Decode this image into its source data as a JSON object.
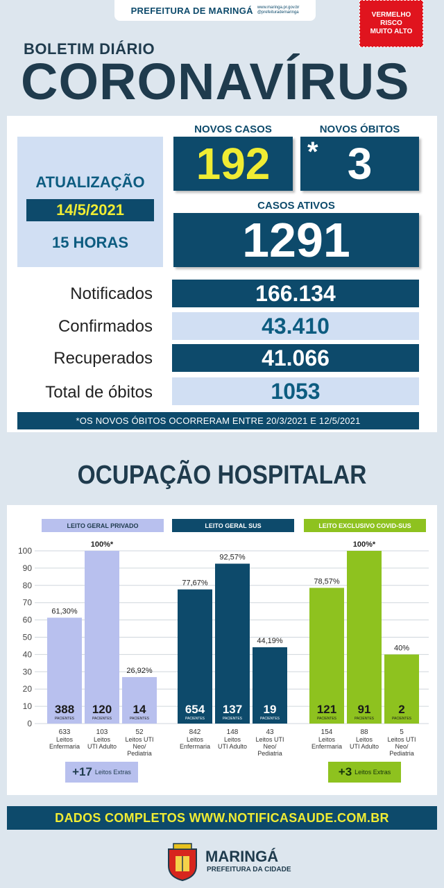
{
  "header": {
    "org": "PREFEITURA DE MARINGÁ",
    "site": "www.maringa.pr.gov.br",
    "handle": "@prefeiturademaringa",
    "risk_lines": [
      "VERMELHO",
      "RISCO",
      "MUITO ALTO"
    ]
  },
  "title": {
    "kicker": "BOLETIM DIÁRIO",
    "main": "CORONAVÍRUS"
  },
  "update": {
    "label": "ATUALIZAÇÃO",
    "date": "14/5/2021",
    "time": "15 HORAS"
  },
  "new_cases": {
    "label": "NOVOS CASOS",
    "value": "192"
  },
  "new_deaths": {
    "label": "NOVOS ÓBITOS",
    "marker": "*",
    "value": "3"
  },
  "active_cases": {
    "label": "CASOS ATIVOS",
    "value": "1291"
  },
  "stats": [
    {
      "label": "Notificados",
      "value": "166.134"
    },
    {
      "label": "Confirmados",
      "value": "43.410"
    },
    {
      "label": "Recuperados",
      "value": "41.066"
    },
    {
      "label": "Total de óbitos",
      "value": "1053"
    }
  ],
  "note": "*OS NOVOS ÓBITOS OCORRERAM ENTRE 20/3/2021 E 12/5/2021",
  "hospital_title": "OCUPAÇÃO HOSPITALAR",
  "chart_data": {
    "type": "bar",
    "ylim": [
      0,
      100
    ],
    "yticks": [
      0,
      10,
      20,
      30,
      40,
      50,
      60,
      70,
      80,
      90,
      100
    ],
    "grid": true,
    "patients_unit": "PACIENTES",
    "groups": [
      {
        "name": "LEITO GERAL PRIVADO",
        "color": "#b8c0ee",
        "header_color": "#b8c0ee",
        "header_text_color": "#1f3b4d",
        "bars": [
          {
            "pct": 61.3,
            "pct_label": "61,30%",
            "patients": "388",
            "beds": "633",
            "beds_label": [
              "Leitos",
              "Enfermaria"
            ]
          },
          {
            "pct": 100,
            "pct_label": "100%*",
            "patients": "120",
            "beds": "103",
            "beds_label": [
              "Leitos",
              "UTI Adulto"
            ]
          },
          {
            "pct": 26.92,
            "pct_label": "26,92%",
            "patients": "14",
            "beds": "52",
            "beds_label": [
              "Leitos UTI",
              "Neo/",
              "Pediatria"
            ]
          }
        ],
        "extra": {
          "num": "+17",
          "text": "Leitos Extras"
        }
      },
      {
        "name": "LEITO GERAL SUS",
        "color": "#0d4a6b",
        "header_color": "#0d4a6b",
        "header_text_color": "#ffffff",
        "bars": [
          {
            "pct": 77.67,
            "pct_label": "77,67%",
            "patients": "654",
            "beds": "842",
            "beds_label": [
              "Leitos",
              "Enfermaria"
            ]
          },
          {
            "pct": 92.57,
            "pct_label": "92,57%",
            "patients": "137",
            "beds": "148",
            "beds_label": [
              "Leitos",
              "UTI Adulto"
            ]
          },
          {
            "pct": 44.19,
            "pct_label": "44,19%",
            "patients": "19",
            "beds": "43",
            "beds_label": [
              "Leitos UTI",
              "Neo/",
              "Pediatria"
            ]
          }
        ]
      },
      {
        "name": "LEITO EXCLUSIVO COVID-SUS",
        "color": "#8ec21f",
        "header_color": "#8ec21f",
        "header_text_color": "#ffffff",
        "bars": [
          {
            "pct": 78.57,
            "pct_label": "78,57%",
            "patients": "121",
            "beds": "154",
            "beds_label": [
              "Leitos",
              "Enfermaria"
            ]
          },
          {
            "pct": 100,
            "pct_label": "100%*",
            "patients": "91",
            "beds": "88",
            "beds_label": [
              "Leitos",
              "UTI Adulto"
            ]
          },
          {
            "pct": 40,
            "pct_label": "40%",
            "patients": "2",
            "beds": "5",
            "beds_label": [
              "Leitos UTI",
              "Neo/",
              "Pediatria"
            ]
          }
        ],
        "extra": {
          "num": "+3",
          "text": "Leitos Extras"
        }
      }
    ]
  },
  "footer": {
    "text": "DADOS COMPLETOS  WWW.NOTIFICASAUDE.COM.BR",
    "logo_name": "MARINGÁ",
    "logo_sub": "PREFEITURA DA CIDADE"
  },
  "colors": {
    "navy": "#0d4a6b",
    "yellow": "#f0ec33",
    "red": "#e0141e",
    "light_blue": "#d1dff3"
  }
}
